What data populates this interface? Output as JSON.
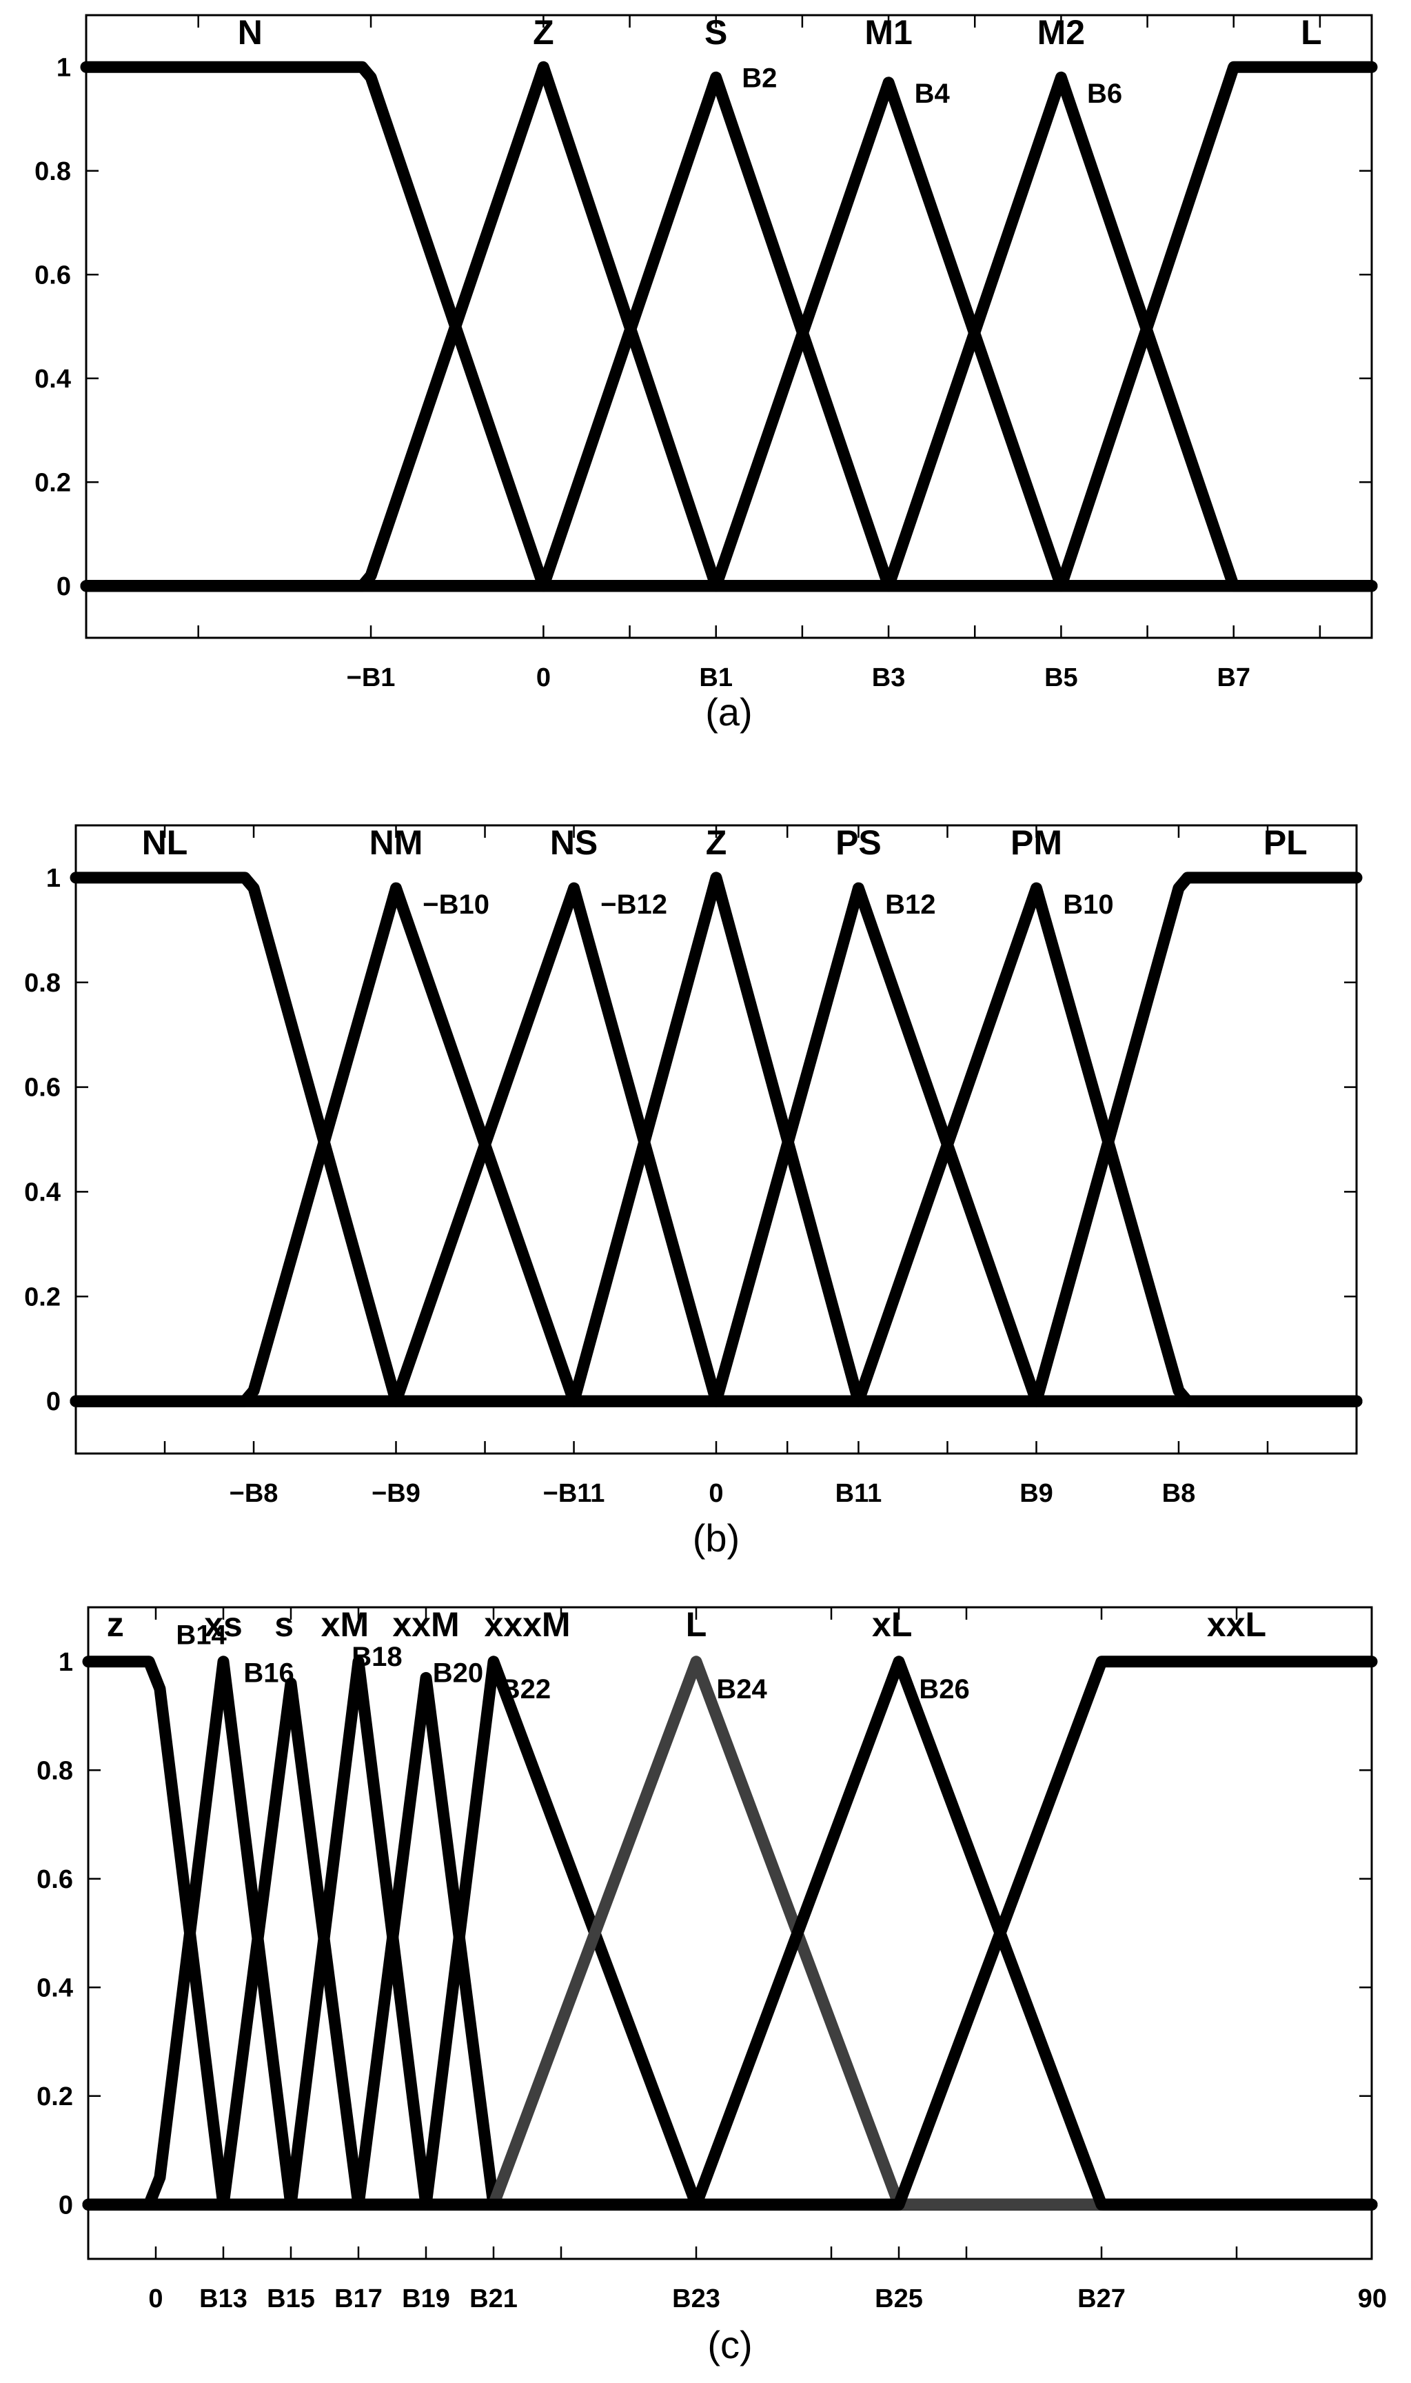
{
  "chart_data": [
    {
      "type": "line",
      "caption": "(a)",
      "xlim": [
        -2.65,
        4.8
      ],
      "ylim": [
        -0.1,
        1.1
      ],
      "yticks": [
        0,
        0.2,
        0.4,
        0.6,
        0.8,
        1
      ],
      "ytick_labels": [
        "0",
        "0.2",
        "0.4",
        "0.6",
        "0.8",
        "1"
      ],
      "xticks": [
        {
          "x": -1,
          "label": "−B1"
        },
        {
          "x": 0,
          "label": "0"
        },
        {
          "x": 1,
          "label": "B1"
        },
        {
          "x": 2,
          "label": "B3"
        },
        {
          "x": 3,
          "label": "B5"
        },
        {
          "x": 4,
          "label": "B7"
        }
      ],
      "minor_xticks": [
        -2,
        0.5,
        1.5,
        2.5,
        3.5,
        4.5
      ],
      "series": [
        {
          "name": "N",
          "color": "#000000",
          "points": [
            [
              -2.65,
              1
            ],
            [
              -1.05,
              1
            ],
            [
              -1,
              0.98
            ],
            [
              0,
              0
            ],
            [
              4.8,
              0
            ]
          ]
        },
        {
          "name": "Z",
          "color": "#000000",
          "points": [
            [
              -2.65,
              0
            ],
            [
              -1.05,
              0
            ],
            [
              -1,
              0.02
            ],
            [
              0,
              1
            ],
            [
              1,
              0
            ],
            [
              4.8,
              0
            ]
          ]
        },
        {
          "name": "S",
          "color": "#000000",
          "points": [
            [
              -2.65,
              0
            ],
            [
              0,
              0
            ],
            [
              1,
              0.98
            ],
            [
              2,
              0
            ],
            [
              4.8,
              0
            ]
          ]
        },
        {
          "name": "M1",
          "color": "#000000",
          "points": [
            [
              -2.65,
              0
            ],
            [
              1,
              0
            ],
            [
              2,
              0.97
            ],
            [
              3,
              0
            ],
            [
              4.8,
              0
            ]
          ]
        },
        {
          "name": "M2",
          "color": "#000000",
          "points": [
            [
              -2.65,
              0
            ],
            [
              2,
              0
            ],
            [
              3,
              0.98
            ],
            [
              4,
              0
            ],
            [
              4.8,
              0
            ]
          ]
        },
        {
          "name": "L",
          "color": "#000000",
          "points": [
            [
              -2.65,
              0
            ],
            [
              3,
              0
            ],
            [
              4,
              1
            ],
            [
              4.8,
              1
            ]
          ]
        }
      ],
      "set_labels": [
        {
          "text": "N",
          "x": -1.7
        },
        {
          "text": "Z",
          "x": 0
        },
        {
          "text": "S",
          "x": 1
        },
        {
          "text": "M1",
          "x": 2
        },
        {
          "text": "M2",
          "x": 3
        },
        {
          "text": "L",
          "x": 4.45
        }
      ],
      "peak_labels": [
        {
          "text": "B2",
          "x": 1.15,
          "y": 0.98
        },
        {
          "text": "B4",
          "x": 2.15,
          "y": 0.95
        },
        {
          "text": "B6",
          "x": 3.15,
          "y": 0.95
        }
      ]
    },
    {
      "type": "line",
      "caption": "(b)",
      "xlim": [
        -3.6,
        3.6
      ],
      "ylim": [
        -0.1,
        1.1
      ],
      "yticks": [
        0,
        0.2,
        0.4,
        0.6,
        0.8,
        1
      ],
      "ytick_labels": [
        "0",
        "0.2",
        "0.4",
        "0.6",
        "0.8",
        "1"
      ],
      "xticks": [
        {
          "x": -2.6,
          "label": "−B8"
        },
        {
          "x": -1.8,
          "label": "−B9"
        },
        {
          "x": -0.8,
          "label": "−B11"
        },
        {
          "x": 0,
          "label": "0"
        },
        {
          "x": 0.8,
          "label": "B11"
        },
        {
          "x": 1.8,
          "label": "B9"
        },
        {
          "x": 2.6,
          "label": "B8"
        }
      ],
      "minor_xticks": [
        -3.1,
        -1.3,
        0.4,
        1.3,
        3.1
      ],
      "series": [
        {
          "name": "NL",
          "color": "#000000",
          "points": [
            [
              -3.6,
              1
            ],
            [
              -2.65,
              1
            ],
            [
              -2.6,
              0.98
            ],
            [
              -1.8,
              0
            ],
            [
              3.6,
              0
            ]
          ]
        },
        {
          "name": "NM",
          "color": "#000000",
          "points": [
            [
              -3.6,
              0
            ],
            [
              -2.65,
              0
            ],
            [
              -2.6,
              0.02
            ],
            [
              -1.8,
              0.98
            ],
            [
              -0.8,
              0
            ],
            [
              3.6,
              0
            ]
          ]
        },
        {
          "name": "NS",
          "color": "#000000",
          "points": [
            [
              -3.6,
              0
            ],
            [
              -1.8,
              0
            ],
            [
              -0.8,
              0.98
            ],
            [
              0,
              0
            ],
            [
              3.6,
              0
            ]
          ]
        },
        {
          "name": "Z",
          "color": "#000000",
          "points": [
            [
              -3.6,
              0
            ],
            [
              -0.8,
              0
            ],
            [
              0,
              1
            ],
            [
              0.8,
              0
            ],
            [
              3.6,
              0
            ]
          ]
        },
        {
          "name": "PS",
          "color": "#000000",
          "points": [
            [
              -3.6,
              0
            ],
            [
              0,
              0
            ],
            [
              0.8,
              0.98
            ],
            [
              1.8,
              0
            ],
            [
              3.6,
              0
            ]
          ]
        },
        {
          "name": "PM",
          "color": "#000000",
          "points": [
            [
              -3.6,
              0
            ],
            [
              0.8,
              0
            ],
            [
              1.8,
              0.98
            ],
            [
              2.6,
              0.02
            ],
            [
              2.65,
              0
            ],
            [
              3.6,
              0
            ]
          ]
        },
        {
          "name": "PL",
          "color": "#000000",
          "points": [
            [
              -3.6,
              0
            ],
            [
              1.8,
              0
            ],
            [
              2.6,
              0.98
            ],
            [
              2.65,
              1
            ],
            [
              3.6,
              1
            ]
          ]
        }
      ],
      "set_labels": [
        {
          "text": "NL",
          "x": -3.1
        },
        {
          "text": "NM",
          "x": -1.8
        },
        {
          "text": "NS",
          "x": -0.8
        },
        {
          "text": "Z",
          "x": 0
        },
        {
          "text": "PS",
          "x": 0.8
        },
        {
          "text": "PM",
          "x": 1.8
        },
        {
          "text": "PL",
          "x": 3.2
        }
      ],
      "peak_labels": [
        {
          "text": "−B10",
          "x": -1.65,
          "y": 0.95
        },
        {
          "text": "−B12",
          "x": -0.65,
          "y": 0.95
        },
        {
          "text": "B12",
          "x": 0.95,
          "y": 0.95
        },
        {
          "text": "B10",
          "x": 1.95,
          "y": 0.95
        }
      ]
    },
    {
      "type": "line",
      "caption": "(c)",
      "xlim": [
        -5,
        90
      ],
      "ylim": [
        -0.1,
        1.1
      ],
      "yticks": [
        0,
        0.2,
        0.4,
        0.6,
        0.8,
        1
      ],
      "ytick_labels": [
        "0",
        "0.2",
        "0.4",
        "0.6",
        "0.8",
        "1"
      ],
      "xticks": [
        {
          "x": 0,
          "label": "0"
        },
        {
          "x": 5,
          "label": "B13"
        },
        {
          "x": 10,
          "label": "B15"
        },
        {
          "x": 15,
          "label": "B17"
        },
        {
          "x": 20,
          "label": "B19"
        },
        {
          "x": 25,
          "label": "B21"
        },
        {
          "x": 40,
          "label": "B23"
        },
        {
          "x": 55,
          "label": "B25"
        },
        {
          "x": 70,
          "label": "B27"
        },
        {
          "x": 90,
          "label": "90"
        }
      ],
      "minor_xticks": [
        30,
        50,
        60,
        80
      ],
      "series": [
        {
          "name": "z",
          "color": "#000000",
          "points": [
            [
              -5,
              1
            ],
            [
              -0.5,
              1
            ],
            [
              0.3,
              0.95
            ],
            [
              5,
              0
            ],
            [
              90,
              0
            ]
          ]
        },
        {
          "name": "xs",
          "color": "#000000",
          "points": [
            [
              -5,
              0
            ],
            [
              -0.5,
              0
            ],
            [
              0.3,
              0.05
            ],
            [
              5,
              1
            ],
            [
              10,
              0
            ],
            [
              90,
              0
            ]
          ]
        },
        {
          "name": "s",
          "color": "#000000",
          "points": [
            [
              -5,
              0
            ],
            [
              5,
              0
            ],
            [
              10,
              0.96
            ],
            [
              15,
              0
            ],
            [
              90,
              0
            ]
          ]
        },
        {
          "name": "xM",
          "color": "#000000",
          "points": [
            [
              -5,
              0
            ],
            [
              10,
              0
            ],
            [
              15,
              1
            ],
            [
              20,
              0
            ],
            [
              90,
              0
            ]
          ]
        },
        {
          "name": "xxM",
          "color": "#000000",
          "points": [
            [
              -5,
              0
            ],
            [
              15,
              0
            ],
            [
              20,
              0.97
            ],
            [
              25,
              0
            ],
            [
              90,
              0
            ]
          ]
        },
        {
          "name": "xxxM",
          "color": "#000000",
          "points": [
            [
              -5,
              0
            ],
            [
              20,
              0
            ],
            [
              25,
              1
            ],
            [
              40,
              0
            ],
            [
              90,
              0
            ]
          ]
        },
        {
          "name": "L",
          "color": "#3f3f3f",
          "points": [
            [
              25,
              0
            ],
            [
              40,
              1
            ],
            [
              55,
              0
            ],
            [
              70,
              0
            ]
          ]
        },
        {
          "name": "xL",
          "color": "#000000",
          "points": [
            [
              -5,
              0
            ],
            [
              40,
              0
            ],
            [
              55,
              1
            ],
            [
              70,
              0
            ],
            [
              90,
              0
            ]
          ]
        },
        {
          "name": "xxL",
          "color": "#000000",
          "points": [
            [
              -5,
              0
            ],
            [
              55,
              0
            ],
            [
              70,
              1
            ],
            [
              90,
              1
            ]
          ]
        }
      ],
      "set_labels": [
        {
          "text": "z",
          "x": -3
        },
        {
          "text": "xs",
          "x": 5
        },
        {
          "text": "s",
          "x": 9.5
        },
        {
          "text": "xM",
          "x": 14
        },
        {
          "text": "xxM",
          "x": 20
        },
        {
          "text": "xxxM",
          "x": 27.5
        },
        {
          "text": "L",
          "x": 40
        },
        {
          "text": "xL",
          "x": 54.5
        },
        {
          "text": "xxL",
          "x": 80
        }
      ],
      "peak_labels": [
        {
          "text": "B14",
          "x": 1.5,
          "y": 1.05
        },
        {
          "text": "B16",
          "x": 6.5,
          "y": 0.98
        },
        {
          "text": "B18",
          "x": 14.5,
          "y": 1.01
        },
        {
          "text": "B20",
          "x": 20.5,
          "y": 0.98
        },
        {
          "text": "B22",
          "x": 25.5,
          "y": 0.95
        },
        {
          "text": "B24",
          "x": 41.5,
          "y": 0.95
        },
        {
          "text": "B26",
          "x": 56.5,
          "y": 0.95
        }
      ]
    }
  ]
}
